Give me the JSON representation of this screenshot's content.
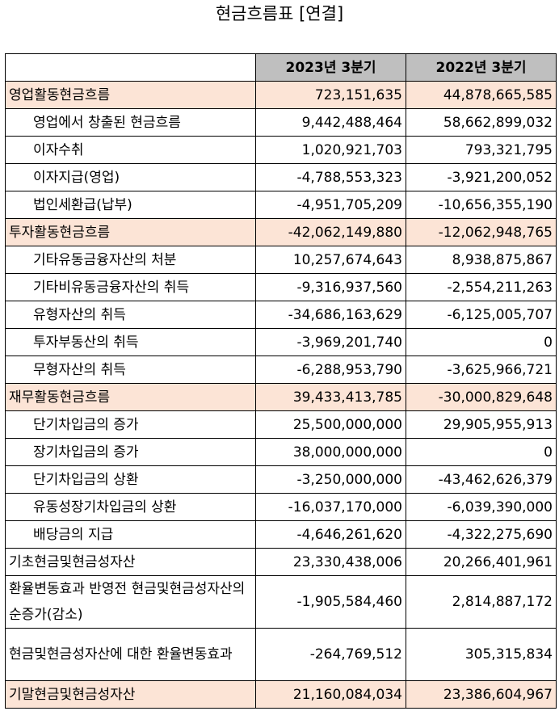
{
  "title": "현금흐름표 [연결]",
  "columns": [
    "",
    "2023년 3분기",
    "2022년 3분기"
  ],
  "rows": [
    {
      "label": "영업활동현금흐름",
      "v2023": "723,151,635",
      "v2022": "44,878,665,585",
      "type": "section"
    },
    {
      "label": "영업에서 창출된 현금흐름",
      "v2023": "9,442,488,464",
      "v2022": "58,662,899,032",
      "type": "sub"
    },
    {
      "label": "이자수취",
      "v2023": "1,020,921,703",
      "v2022": "793,321,795",
      "type": "sub"
    },
    {
      "label": "이자지급(영업)",
      "v2023": "-4,788,553,323",
      "v2022": "-3,921,200,052",
      "type": "sub"
    },
    {
      "label": "법인세환급(납부)",
      "v2023": "-4,951,705,209",
      "v2022": "-10,656,355,190",
      "type": "sub"
    },
    {
      "label": "투자활동현금흐름",
      "v2023": "-42,062,149,880",
      "v2022": "-12,062,948,765",
      "type": "section"
    },
    {
      "label": "기타유동금융자산의 처분",
      "v2023": "10,257,674,643",
      "v2022": "8,938,875,867",
      "type": "sub"
    },
    {
      "label": "기타비유동금융자산의 취득",
      "v2023": "-9,316,937,560",
      "v2022": "-2,554,211,263",
      "type": "sub"
    },
    {
      "label": "유형자산의 취득",
      "v2023": "-34,686,163,629",
      "v2022": "-6,125,005,707",
      "type": "sub"
    },
    {
      "label": "투자부동산의 취득",
      "v2023": "-3,969,201,740",
      "v2022": "0",
      "type": "sub"
    },
    {
      "label": "무형자산의 취득",
      "v2023": "-6,288,953,790",
      "v2022": "-3,625,966,721",
      "type": "sub"
    },
    {
      "label": "재무활동현금흐름",
      "v2023": "39,433,413,785",
      "v2022": "-30,000,829,648",
      "type": "section"
    },
    {
      "label": "단기차입금의 증가",
      "v2023": "25,500,000,000",
      "v2022": "29,905,955,913",
      "type": "sub"
    },
    {
      "label": "장기차입금의 증가",
      "v2023": "38,000,000,000",
      "v2022": "0",
      "type": "sub"
    },
    {
      "label": "단기차입금의 상환",
      "v2023": "-3,250,000,000",
      "v2022": "-43,462,626,379",
      "type": "sub"
    },
    {
      "label": "유동성장기차입금의 상환",
      "v2023": "-16,037,170,000",
      "v2022": "-6,039,390,000",
      "type": "sub"
    },
    {
      "label": "배당금의 지급",
      "v2023": "-4,646,261,620",
      "v2022": "-4,322,275,690",
      "type": "sub"
    },
    {
      "label": "기초현금및현금성자산",
      "v2023": "23,330,438,006",
      "v2022": "20,266,401,961",
      "type": "plain"
    },
    {
      "label": "환율변동효과 반영전 현금및현금성자산의 순증가(감소)",
      "v2023": "-1,905,584,460",
      "v2022": "2,814,887,172",
      "type": "tall"
    },
    {
      "label": "현금및현금성자산에 대한 환율변동효과",
      "v2023": "-264,769,512",
      "v2022": "305,315,834",
      "type": "tall"
    },
    {
      "label": "기말현금및현금성자산",
      "v2023": "21,160,084,034",
      "v2022": "23,386,604,967",
      "type": "section"
    }
  ]
}
